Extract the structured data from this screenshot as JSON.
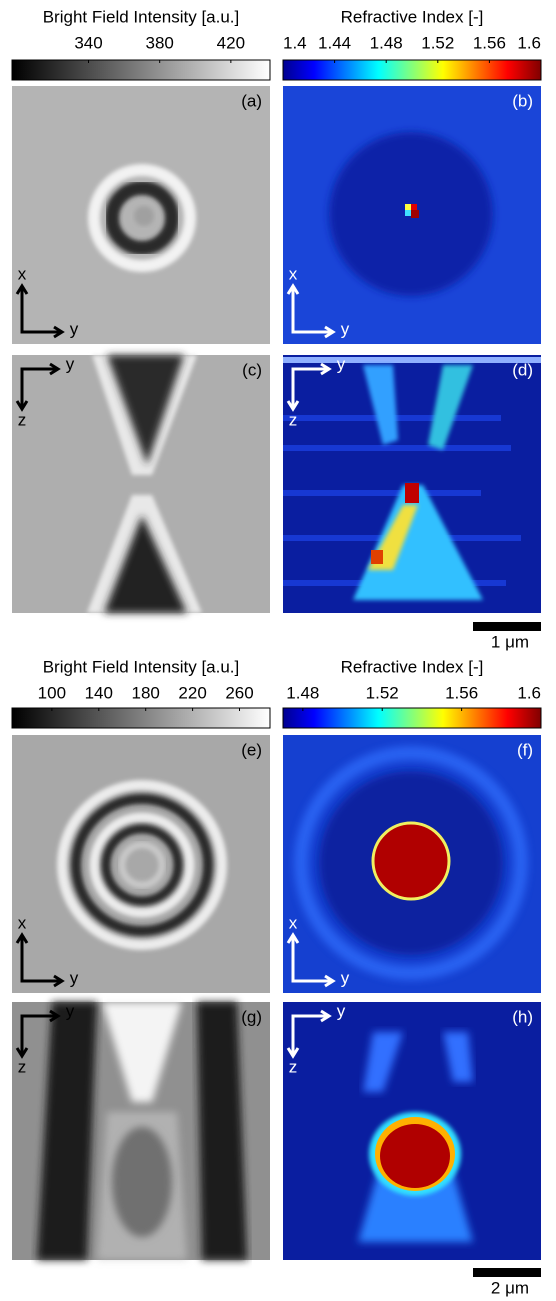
{
  "groups": [
    {
      "colorbars": [
        {
          "title": "Bright Field Intensity [a.u.]",
          "range": [
            297,
            442
          ],
          "ticks": [
            340,
            380,
            420
          ]
        },
        {
          "title": "Refractive Index [-]",
          "range": [
            1.4,
            1.6
          ],
          "ticks": [
            1.4,
            1.44,
            1.48,
            1.52,
            1.56,
            1.6
          ]
        }
      ],
      "panels": [
        {
          "label": "(a)",
          "vertical_axis": "x",
          "horizontal_axis": "y"
        },
        {
          "label": "(b)",
          "vertical_axis": "x",
          "horizontal_axis": "y"
        },
        {
          "label": "(c)",
          "vertical_axis": "z",
          "horizontal_axis": "y"
        },
        {
          "label": "(d)",
          "vertical_axis": "z",
          "horizontal_axis": "y"
        }
      ],
      "scale_bar": "1 μm"
    },
    {
      "colorbars": [
        {
          "title": "Bright Field Intensity [a.u.]",
          "range": [
            66,
            286
          ],
          "ticks": [
            100,
            140,
            180,
            220,
            260
          ]
        },
        {
          "title": "Refractive Index [-]",
          "range": [
            1.47,
            1.6
          ],
          "ticks": [
            1.48,
            1.52,
            1.56,
            1.6
          ]
        }
      ],
      "panels": [
        {
          "label": "(e)",
          "vertical_axis": "x",
          "horizontal_axis": "y"
        },
        {
          "label": "(f)",
          "vertical_axis": "x",
          "horizontal_axis": "y"
        },
        {
          "label": "(g)",
          "vertical_axis": "z",
          "horizontal_axis": "y"
        },
        {
          "label": "(h)",
          "vertical_axis": "z",
          "horizontal_axis": "y"
        }
      ],
      "scale_bar": "2 μm"
    }
  ]
}
